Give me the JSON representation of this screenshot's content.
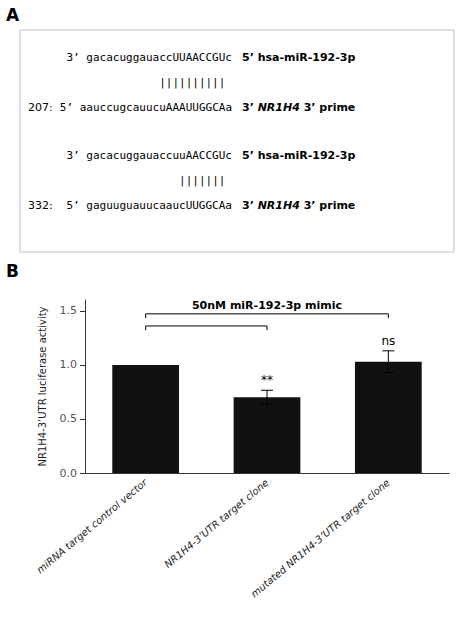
{
  "chart_data": [
    {
      "type": "text",
      "title": "A",
      "alignments": [
        {
          "number": "207:",
          "mirna": "3’ gacacuggauaccUUAACCGUc",
          "mirna_label": "5’ hsa-miR-192-3p",
          "pipes": "||||||||||",
          "target": "5’ aauccugcauucuAAAUUGGCAa",
          "target_label_parts": [
            "3’ ",
            "NR1H4",
            " 3’ prime"
          ]
        },
        {
          "number": "332:",
          "mirna": "3’ gacacuggauaccuuAACCGUc",
          "mirna_label": "5’ hsa-miR-192-3p",
          "pipes": "|||||||",
          "target": "5’ gaguuguauucaaucUUGGCAa",
          "target_label_parts": [
            "3’ ",
            "NR1H4",
            " 3’ prime"
          ]
        }
      ]
    },
    {
      "type": "bar",
      "title": "B",
      "categories": [
        "miRNA target control vector",
        "NR1H4-3’UTR target clone",
        "mutated NR1H4-3’UTR target clone"
      ],
      "values": [
        1.0,
        0.7,
        1.03
      ],
      "errors": [
        0.0,
        0.065,
        0.1
      ],
      "sig_labels": [
        null,
        "**",
        "ns"
      ],
      "color": "#111111",
      "ylabel": "NR1H4-3’UTR luciferase activity",
      "ylim": [
        0,
        1.6
      ],
      "yticks": [
        {
          "value": 0.0,
          "label": "0.0"
        },
        {
          "value": 0.5,
          "label": "0.5"
        },
        {
          "value": 1.0,
          "label": "1.0"
        },
        {
          "value": 1.5,
          "label": "1.5"
        }
      ],
      "brackets": [
        {
          "from": 0,
          "to": 2,
          "label": "50nM miR-192-3p mimic"
        },
        {
          "from": 0,
          "to": 1
        }
      ],
      "grid": false
    }
  ]
}
